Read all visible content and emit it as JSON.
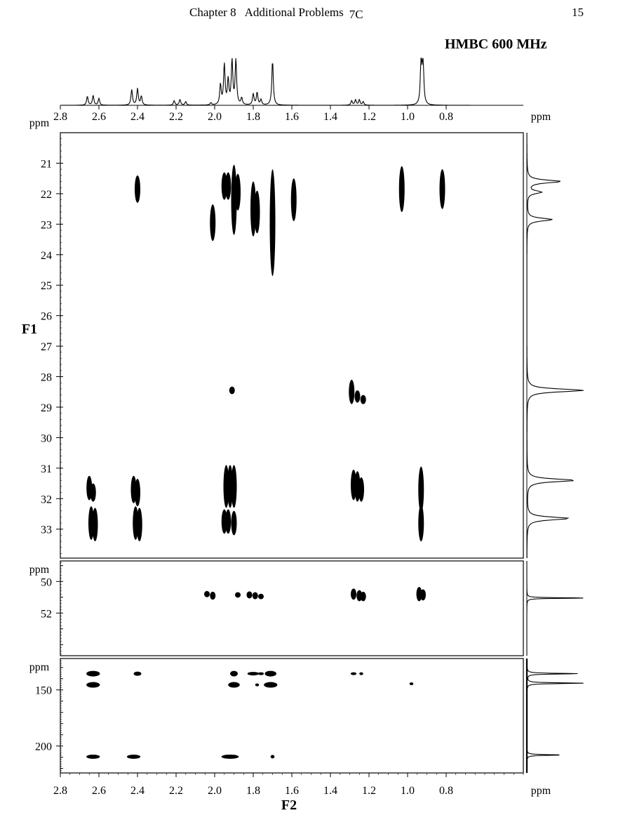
{
  "header": {
    "chapter": "Chapter 8",
    "section": "Additional Problems",
    "problem": "7C",
    "page_number": "15"
  },
  "experiment_title": "HMBC 600 MHz",
  "chart_data": {
    "type": "heatmap",
    "title": "HMBC 600 MHz",
    "xlabel": "F2",
    "ylabel": "F1",
    "unit": "ppm",
    "x_axis": {
      "reversed": true,
      "xlim": [
        2.8,
        0.4
      ],
      "ticks": [
        "2.8",
        "2.6",
        "2.4",
        "2.2",
        "2.0",
        "1.8",
        "1.6",
        "1.4",
        "1.2",
        "1.0",
        "0.8"
      ]
    },
    "panels": [
      {
        "name": "aliphatic",
        "ylim": [
          20.0,
          33.95
        ],
        "ticks": [
          "21",
          "22",
          "23",
          "24",
          "25",
          "26",
          "27",
          "28",
          "29",
          "30",
          "31",
          "32",
          "33"
        ],
        "peaks": [
          {
            "x": 2.4,
            "y": 21.85,
            "h": 0.9
          },
          {
            "x": 1.95,
            "y": 21.75,
            "h": 0.9
          },
          {
            "x": 1.93,
            "y": 21.75,
            "h": 0.9
          },
          {
            "x": 1.9,
            "y": 22.2,
            "h": 2.3
          },
          {
            "x": 1.88,
            "y": 21.95,
            "h": 1.2
          },
          {
            "x": 1.8,
            "y": 22.5,
            "h": 1.8
          },
          {
            "x": 1.78,
            "y": 22.6,
            "h": 1.4
          },
          {
            "x": 1.7,
            "y": 22.95,
            "h": 3.5
          },
          {
            "x": 1.59,
            "y": 22.2,
            "h": 1.4
          },
          {
            "x": 1.03,
            "y": 21.85,
            "h": 1.5
          },
          {
            "x": 0.82,
            "y": 21.85,
            "h": 1.3
          },
          {
            "x": 2.01,
            "y": 22.95,
            "h": 1.2
          },
          {
            "x": 1.91,
            "y": 28.45,
            "h": 0.25
          },
          {
            "x": 1.29,
            "y": 28.5,
            "h": 0.8
          },
          {
            "x": 1.26,
            "y": 28.65,
            "h": 0.4
          },
          {
            "x": 1.23,
            "y": 28.75,
            "h": 0.3
          },
          {
            "x": 2.65,
            "y": 31.65,
            "h": 0.8
          },
          {
            "x": 2.63,
            "y": 31.8,
            "h": 0.6
          },
          {
            "x": 2.42,
            "y": 31.7,
            "h": 0.9
          },
          {
            "x": 2.4,
            "y": 31.8,
            "h": 0.9
          },
          {
            "x": 1.94,
            "y": 31.6,
            "h": 1.4
          },
          {
            "x": 1.92,
            "y": 31.6,
            "h": 1.4
          },
          {
            "x": 1.9,
            "y": 31.6,
            "h": 1.4
          },
          {
            "x": 1.28,
            "y": 31.55,
            "h": 1.0
          },
          {
            "x": 1.26,
            "y": 31.6,
            "h": 1.0
          },
          {
            "x": 1.24,
            "y": 31.7,
            "h": 0.8
          },
          {
            "x": 0.93,
            "y": 31.7,
            "h": 1.5
          },
          {
            "x": 2.64,
            "y": 32.8,
            "h": 1.1
          },
          {
            "x": 2.62,
            "y": 32.85,
            "h": 1.1
          },
          {
            "x": 2.41,
            "y": 32.8,
            "h": 1.1
          },
          {
            "x": 2.39,
            "y": 32.85,
            "h": 1.1
          },
          {
            "x": 1.95,
            "y": 32.75,
            "h": 0.8
          },
          {
            "x": 1.93,
            "y": 32.75,
            "h": 0.8
          },
          {
            "x": 1.9,
            "y": 32.8,
            "h": 0.8
          },
          {
            "x": 0.93,
            "y": 32.8,
            "h": 1.2
          }
        ]
      },
      {
        "name": "mid",
        "ylim": [
          48.7,
          54.7
        ],
        "ticks": [
          "50",
          "52"
        ],
        "peaks": [
          {
            "x": 2.04,
            "y": 50.8,
            "h": 0.4
          },
          {
            "x": 2.01,
            "y": 50.9,
            "h": 0.5
          },
          {
            "x": 1.88,
            "y": 50.85,
            "h": 0.35
          },
          {
            "x": 1.82,
            "y": 50.85,
            "h": 0.45
          },
          {
            "x": 1.79,
            "y": 50.9,
            "h": 0.45
          },
          {
            "x": 1.76,
            "y": 50.95,
            "h": 0.35
          },
          {
            "x": 1.28,
            "y": 50.8,
            "h": 0.7
          },
          {
            "x": 1.25,
            "y": 50.9,
            "h": 0.7
          },
          {
            "x": 1.23,
            "y": 50.95,
            "h": 0.6
          },
          {
            "x": 0.94,
            "y": 50.8,
            "h": 0.9
          },
          {
            "x": 0.92,
            "y": 50.85,
            "h": 0.7
          }
        ]
      },
      {
        "name": "carbonyl",
        "ylim": [
          122.0,
          224.0
        ],
        "ticks": [
          "150",
          "200"
        ],
        "peaks": [
          {
            "x": 2.63,
            "y": 135.5,
            "w": 0.07,
            "h": 4
          },
          {
            "x": 2.63,
            "y": 145.5,
            "w": 0.07,
            "h": 4
          },
          {
            "x": 2.4,
            "y": 135.5,
            "w": 0.04,
            "h": 3
          },
          {
            "x": 1.9,
            "y": 135.5,
            "w": 0.04,
            "h": 4
          },
          {
            "x": 1.8,
            "y": 135.5,
            "w": 0.06,
            "h": 2.5
          },
          {
            "x": 1.76,
            "y": 135.5,
            "w": 0.03,
            "h": 2
          },
          {
            "x": 1.71,
            "y": 135.5,
            "w": 0.06,
            "h": 4
          },
          {
            "x": 1.9,
            "y": 145.5,
            "w": 0.06,
            "h": 4
          },
          {
            "x": 1.78,
            "y": 145.5,
            "w": 0.02,
            "h": 2
          },
          {
            "x": 1.71,
            "y": 145.5,
            "w": 0.07,
            "h": 4
          },
          {
            "x": 1.28,
            "y": 135.5,
            "w": 0.03,
            "h": 2
          },
          {
            "x": 1.24,
            "y": 135.5,
            "w": 0.02,
            "h": 2
          },
          {
            "x": 0.98,
            "y": 144.5,
            "w": 0.02,
            "h": 1.5
          },
          {
            "x": 2.63,
            "y": 209.5,
            "w": 0.07,
            "h": 3
          },
          {
            "x": 2.42,
            "y": 209.5,
            "w": 0.07,
            "h": 3
          },
          {
            "x": 1.92,
            "y": 209.5,
            "w": 0.09,
            "h": 3
          },
          {
            "x": 1.7,
            "y": 209.5,
            "w": 0.02,
            "h": 2.5
          }
        ]
      }
    ],
    "f2_projection_peaks": [
      {
        "x": 2.66,
        "i": 0.2
      },
      {
        "x": 2.63,
        "i": 0.22
      },
      {
        "x": 2.6,
        "i": 0.15
      },
      {
        "x": 2.43,
        "i": 0.35
      },
      {
        "x": 2.4,
        "i": 0.37
      },
      {
        "x": 2.38,
        "i": 0.2
      },
      {
        "x": 2.21,
        "i": 0.1
      },
      {
        "x": 2.18,
        "i": 0.13
      },
      {
        "x": 2.15,
        "i": 0.08
      },
      {
        "x": 2.02,
        "i": 0.05
      },
      {
        "x": 1.97,
        "i": 0.45
      },
      {
        "x": 1.95,
        "i": 0.9
      },
      {
        "x": 1.93,
        "i": 0.55
      },
      {
        "x": 1.91,
        "i": 1.0
      },
      {
        "x": 1.89,
        "i": 1.0
      },
      {
        "x": 1.86,
        "i": 0.15
      },
      {
        "x": 1.8,
        "i": 0.25
      },
      {
        "x": 1.78,
        "i": 0.28
      },
      {
        "x": 1.76,
        "i": 0.12
      },
      {
        "x": 1.7,
        "i": 1.0
      },
      {
        "x": 1.29,
        "i": 0.1
      },
      {
        "x": 1.27,
        "i": 0.12
      },
      {
        "x": 1.25,
        "i": 0.12
      },
      {
        "x": 1.23,
        "i": 0.08
      },
      {
        "x": 0.93,
        "i": 1.0
      },
      {
        "x": 0.92,
        "i": 1.0
      }
    ],
    "f1_projection_peaks": [
      {
        "panel": 0,
        "y": 21.6,
        "i": 0.6
      },
      {
        "panel": 0,
        "y": 21.95,
        "i": 0.25
      },
      {
        "panel": 0,
        "y": 22.85,
        "i": 0.45
      },
      {
        "panel": 0,
        "y": 28.45,
        "i": 1.0
      },
      {
        "panel": 0,
        "y": 31.4,
        "i": 0.85
      },
      {
        "panel": 0,
        "y": 32.65,
        "i": 0.75
      },
      {
        "panel": 1,
        "y": 51.05,
        "i": 1.0
      },
      {
        "panel": 2,
        "y": 135.5,
        "i": 0.9
      },
      {
        "panel": 2,
        "y": 144.0,
        "i": 1.0
      },
      {
        "panel": 2,
        "y": 208.0,
        "i": 0.6
      }
    ]
  }
}
